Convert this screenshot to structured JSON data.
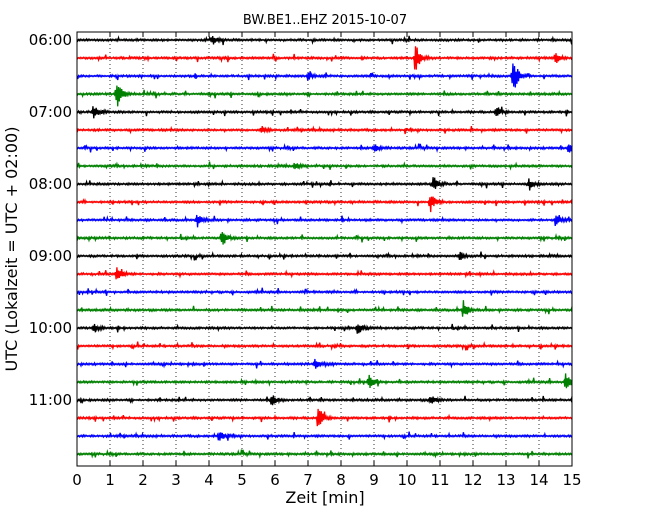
{
  "chart_data": {
    "type": "line",
    "title": "BW.BE1..EHZ 2015-10-07",
    "xlabel": "Zeit  [min]",
    "ylabel": "UTC (Lokalzeit = UTC + 02:00)",
    "xlim": [
      0,
      15
    ],
    "x_ticks": [
      "0",
      "1",
      "2",
      "3",
      "4",
      "5",
      "6",
      "7",
      "8",
      "9",
      "10",
      "11",
      "12",
      "13",
      "14",
      "15"
    ],
    "y_tick_labels": [
      "06:00",
      "07:00",
      "08:00",
      "09:00",
      "10:00",
      "11:00"
    ],
    "grid": {
      "vertical_dotted": true
    },
    "row_colors": [
      "#000000",
      "#ff0000",
      "#0000ff",
      "#008000"
    ],
    "row_start_times": [
      "06:00",
      "06:15",
      "06:30",
      "06:45",
      "07:00",
      "07:15",
      "07:30",
      "07:45",
      "08:00",
      "08:15",
      "08:30",
      "08:45",
      "09:00",
      "09:15",
      "09:30",
      "09:45",
      "10:00",
      "10:15",
      "10:30",
      "10:45",
      "11:00",
      "11:15",
      "11:30",
      "11:45"
    ],
    "events": [
      {
        "row": 0,
        "x": 4.1,
        "amp": 0.3
      },
      {
        "row": 1,
        "x": 10.25,
        "amp": 0.9
      },
      {
        "row": 1,
        "x": 14.5,
        "amp": 0.35
      },
      {
        "row": 2,
        "x": 13.2,
        "amp": 1.2
      },
      {
        "row": 2,
        "x": 7.0,
        "amp": 0.25
      },
      {
        "row": 3,
        "x": 1.2,
        "amp": 0.9
      },
      {
        "row": 4,
        "x": 0.5,
        "amp": 0.45
      },
      {
        "row": 4,
        "x": 12.7,
        "amp": 0.3
      },
      {
        "row": 5,
        "x": 5.6,
        "amp": 0.25
      },
      {
        "row": 6,
        "x": 9.0,
        "amp": 0.3
      },
      {
        "row": 6,
        "x": 14.9,
        "amp": 0.3
      },
      {
        "row": 7,
        "x": 6.6,
        "amp": 0.25
      },
      {
        "row": 8,
        "x": 10.8,
        "amp": 0.45
      },
      {
        "row": 8,
        "x": 13.7,
        "amp": 0.3
      },
      {
        "row": 9,
        "x": 10.7,
        "amp": 0.6
      },
      {
        "row": 10,
        "x": 3.65,
        "amp": 0.45
      },
      {
        "row": 10,
        "x": 14.5,
        "amp": 0.35
      },
      {
        "row": 11,
        "x": 4.4,
        "amp": 0.45
      },
      {
        "row": 12,
        "x": 11.6,
        "amp": 0.3
      },
      {
        "row": 13,
        "x": 1.2,
        "amp": 0.55
      },
      {
        "row": 15,
        "x": 11.7,
        "amp": 0.55
      },
      {
        "row": 16,
        "x": 8.5,
        "amp": 0.35
      },
      {
        "row": 16,
        "x": 0.5,
        "amp": 0.3
      },
      {
        "row": 18,
        "x": 7.2,
        "amp": 0.3
      },
      {
        "row": 19,
        "x": 14.8,
        "amp": 0.65
      },
      {
        "row": 19,
        "x": 8.85,
        "amp": 0.4
      },
      {
        "row": 20,
        "x": 5.9,
        "amp": 0.35
      },
      {
        "row": 20,
        "x": 10.7,
        "amp": 0.3
      },
      {
        "row": 21,
        "x": 7.3,
        "amp": 0.75
      },
      {
        "row": 22,
        "x": 4.3,
        "amp": 0.35
      }
    ]
  }
}
